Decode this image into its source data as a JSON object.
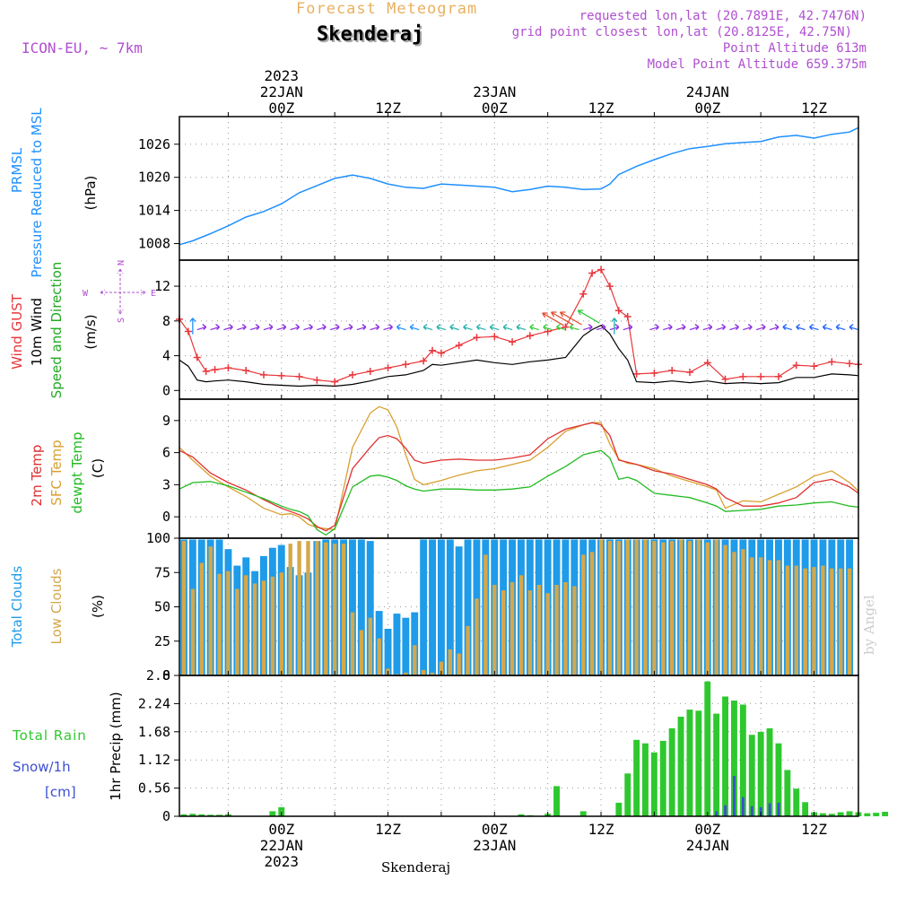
{
  "header": {
    "product": "Forecast Meteogram",
    "location": "Skenderaj",
    "model": "ICON-EU, ~ 7km",
    "requested": "requested lon,lat (20.7891E, 42.7476N)",
    "gridpoint": "grid point closest lon,lat (20.8125E, 42.75N)",
    "point_alt": "Point Altitude 613m",
    "model_alt": "Model Point Altitude 659.375m",
    "footer_location": "Skenderaj",
    "credit": "by Angel"
  },
  "colors": {
    "pressure": "#1e90ff",
    "gust": "#e8373c",
    "wind": "#000000",
    "dir_label": "#22aa22",
    "temp2m": "#e03030",
    "sfc": "#d9a030",
    "dewpt": "#22bb22",
    "total_cloud": "#1e9be9",
    "low_cloud": "#d4a84a",
    "rain": "#2ec82e",
    "snow": "#3b4fd0",
    "purple": "#b04fd0",
    "orange_title": "#e8b060"
  },
  "time_axis": {
    "top_labels": [
      {
        "h": 0,
        "lines": [
          "2023",
          "22JAN",
          "00Z"
        ]
      },
      {
        "h": 12,
        "lines": [
          "12Z"
        ]
      },
      {
        "h": 24,
        "lines": [
          "23JAN",
          "00Z"
        ]
      },
      {
        "h": 36,
        "lines": [
          "12Z"
        ]
      },
      {
        "h": 48,
        "lines": [
          "24JAN",
          "00Z"
        ]
      },
      {
        "h": 60,
        "lines": [
          "12Z"
        ]
      }
    ],
    "bottom_labels": [
      {
        "h": 0,
        "lines": [
          "00Z",
          "22JAN",
          "2023"
        ]
      },
      {
        "h": 12,
        "lines": [
          "12Z"
        ]
      },
      {
        "h": 24,
        "lines": [
          "00Z",
          "23JAN"
        ]
      },
      {
        "h": 36,
        "lines": [
          "12Z"
        ]
      },
      {
        "h": 48,
        "lines": [
          "00Z",
          "24JAN"
        ]
      },
      {
        "h": 60,
        "lines": [
          "12Z"
        ]
      }
    ],
    "hour_range": [
      -11.5,
      65
    ]
  },
  "chart_data": [
    {
      "type": "line",
      "panel": "pressure",
      "labels": [
        "PRMSL",
        "Pressure Reduced to MSL",
        "(hPa)"
      ],
      "ylim": [
        1005,
        1031
      ],
      "yticks": [
        1008,
        1014,
        1020,
        1026
      ],
      "x": [
        -11.5,
        -10,
        -8,
        -6,
        -4,
        -2,
        0,
        2,
        4,
        6,
        8,
        10,
        12,
        14,
        16,
        18,
        20,
        22,
        24,
        26,
        28,
        30,
        32,
        34,
        36,
        37,
        38,
        40,
        42,
        44,
        46,
        48,
        50,
        52,
        54,
        56,
        58,
        60,
        62,
        64,
        65
      ],
      "values": [
        1007.8,
        1008.5,
        1009.8,
        1011.2,
        1012.8,
        1013.8,
        1015.2,
        1017.2,
        1018.5,
        1019.8,
        1020.4,
        1019.8,
        1018.8,
        1018.2,
        1018.0,
        1018.8,
        1018.6,
        1018.4,
        1018.2,
        1017.4,
        1017.8,
        1018.4,
        1018.2,
        1017.8,
        1017.9,
        1018.8,
        1020.5,
        1022.0,
        1023.2,
        1024.3,
        1025.2,
        1025.6,
        1026.1,
        1026.3,
        1026.5,
        1027.3,
        1027.6,
        1027.1,
        1027.8,
        1028.2,
        1029.0
      ]
    },
    {
      "type": "line",
      "panel": "wind",
      "labels": [
        "Wind GUST",
        "10m Wind",
        "Speed and Direction",
        "(m/s)"
      ],
      "compass": [
        "N",
        "S",
        "W",
        "E"
      ],
      "ylim": [
        -1,
        15
      ],
      "yticks": [
        0,
        4,
        8,
        12
      ],
      "x": [
        -11.5,
        -10.5,
        -9.5,
        -8.5,
        -7.5,
        -6,
        -4,
        -2,
        0,
        2,
        4,
        6,
        8,
        10,
        12,
        14,
        16,
        17,
        18,
        20,
        22,
        24,
        26,
        28,
        30,
        32,
        34,
        35,
        36,
        37,
        38,
        39,
        40,
        42,
        44,
        46,
        48,
        50,
        52,
        54,
        56,
        58,
        60,
        62,
        64,
        65
      ],
      "gust": [
        8.2,
        6.8,
        3.8,
        2.2,
        2.4,
        2.6,
        2.3,
        1.8,
        1.7,
        1.6,
        1.2,
        1.0,
        1.8,
        2.2,
        2.6,
        3.0,
        3.4,
        4.6,
        4.3,
        5.2,
        6.1,
        6.2,
        5.6,
        6.3,
        6.8,
        7.3,
        11.1,
        13.5,
        13.9,
        12.0,
        9.2,
        8.5,
        1.9,
        2.0,
        2.3,
        2.1,
        3.2,
        1.3,
        1.6,
        1.6,
        1.6,
        2.9,
        2.8,
        3.3,
        3.1,
        3.0
      ],
      "wind": [
        3.5,
        2.8,
        1.2,
        1.0,
        1.1,
        1.2,
        1.0,
        0.7,
        0.6,
        0.5,
        0.6,
        0.5,
        0.7,
        1.1,
        1.6,
        1.8,
        2.3,
        3.0,
        2.9,
        3.2,
        3.5,
        3.2,
        3.0,
        3.3,
        3.5,
        3.8,
        6.3,
        7.0,
        7.5,
        6.5,
        4.8,
        3.5,
        1.0,
        0.9,
        1.1,
        0.9,
        1.1,
        0.8,
        0.9,
        0.8,
        0.9,
        1.5,
        1.5,
        1.9,
        1.8,
        1.7
      ]
    },
    {
      "type": "line",
      "panel": "temperature",
      "labels": [
        "2m Temp",
        "SFC Temp",
        "dewpt Temp",
        "(C)"
      ],
      "ylim": [
        -2,
        11
      ],
      "yticks": [
        0,
        3,
        6,
        9
      ],
      "x": [
        -11.5,
        -10,
        -8,
        -6,
        -4,
        -2,
        0,
        1,
        2,
        3,
        4,
        5,
        6,
        8,
        10,
        11,
        12,
        13,
        14,
        15,
        16,
        18,
        20,
        22,
        24,
        26,
        28,
        30,
        32,
        34,
        35,
        36,
        37,
        38,
        39,
        40,
        42,
        44,
        46,
        48,
        49,
        50,
        52,
        54,
        56,
        58,
        60,
        62,
        64,
        65
      ],
      "temp2m": [
        6.2,
        5.6,
        4.1,
        3.2,
        2.5,
        1.6,
        0.8,
        0.5,
        0.2,
        -0.2,
        -0.9,
        -1.3,
        -0.8,
        4.5,
        6.5,
        7.4,
        7.6,
        7.3,
        6.4,
        5.3,
        5.0,
        5.3,
        5.4,
        5.3,
        5.3,
        5.5,
        5.8,
        7.3,
        8.2,
        8.6,
        8.8,
        8.6,
        7.6,
        5.3,
        5.1,
        4.9,
        4.3,
        4.0,
        3.5,
        3.0,
        2.6,
        1.8,
        1.0,
        1.0,
        1.3,
        1.8,
        3.2,
        3.5,
        2.8,
        2.2
      ],
      "sfc": [
        6.5,
        5.3,
        3.8,
        2.8,
        1.9,
        0.8,
        0.2,
        0.3,
        0.0,
        -0.7,
        -1.0,
        -1.1,
        -1.2,
        6.5,
        9.7,
        10.3,
        10.0,
        8.4,
        5.8,
        3.5,
        3.0,
        3.4,
        3.9,
        4.3,
        4.5,
        4.9,
        5.3,
        6.5,
        8.0,
        8.6,
        8.8,
        8.8,
        6.8,
        5.4,
        5.0,
        4.9,
        4.5,
        3.8,
        3.3,
        2.8,
        2.5,
        0.8,
        1.5,
        1.4,
        2.1,
        2.8,
        3.8,
        4.3,
        3.2,
        2.4
      ],
      "dewpt": [
        2.6,
        3.2,
        3.3,
        2.9,
        2.3,
        1.7,
        1.0,
        0.7,
        0.5,
        0.1,
        -1.2,
        -1.7,
        -1.1,
        2.8,
        3.8,
        3.9,
        3.7,
        3.4,
        2.9,
        2.6,
        2.4,
        2.6,
        2.6,
        2.5,
        2.5,
        2.6,
        2.8,
        3.8,
        4.7,
        5.8,
        6.0,
        6.2,
        5.5,
        3.5,
        3.7,
        3.4,
        2.2,
        2.0,
        1.8,
        1.3,
        1.0,
        0.5,
        0.6,
        0.7,
        1.0,
        1.1,
        1.3,
        1.4,
        1.0,
        0.9
      ]
    },
    {
      "type": "bar",
      "panel": "clouds",
      "labels": [
        "Total Clouds",
        "Low Clouds",
        "(%)"
      ],
      "ylim": [
        0,
        100
      ],
      "yticks": [
        0,
        25,
        50,
        75,
        100
      ],
      "x_start": -11,
      "x_step": 1,
      "total": [
        99,
        99,
        99,
        99,
        99,
        92,
        80,
        86,
        76,
        87,
        93,
        95,
        79,
        73,
        75,
        98,
        99,
        99,
        99,
        99,
        99,
        98,
        47,
        34,
        45,
        42,
        46,
        99,
        99,
        99,
        99,
        94,
        99,
        99,
        99,
        99,
        99,
        99,
        99,
        99,
        99,
        99,
        99,
        99,
        99,
        99,
        99,
        99,
        99,
        99,
        99,
        99,
        99,
        99,
        99,
        99,
        99,
        99,
        99,
        99,
        99,
        99,
        99,
        99,
        99,
        99,
        99,
        99,
        99,
        99,
        99,
        99,
        99,
        99,
        99,
        99
      ],
      "low": [
        98,
        63,
        82,
        94,
        74,
        76,
        63,
        73,
        67,
        69,
        72,
        75,
        96,
        98,
        98,
        98,
        97,
        96,
        96,
        46,
        33,
        42,
        27,
        5,
        1,
        2,
        22,
        4,
        2,
        10,
        19,
        16,
        36,
        56,
        88,
        66,
        62,
        68,
        73,
        62,
        66,
        60,
        66,
        68,
        65,
        88,
        90,
        99,
        98,
        98,
        99,
        99,
        99,
        98,
        97,
        98,
        99,
        98,
        99,
        97,
        99,
        95,
        90,
        92,
        86,
        86,
        84,
        84,
        80,
        80,
        78,
        79,
        80,
        78,
        78,
        78
      ]
    },
    {
      "type": "bar",
      "panel": "precipitation",
      "labels": [
        "Total Rain",
        "Snow/1h",
        "[cm]",
        "1hr Precip (mm)"
      ],
      "ylim": [
        0,
        2.8
      ],
      "yticks": [
        0,
        0.56,
        1.12,
        1.68,
        2.24,
        2.8
      ],
      "x_start": -11,
      "x_step": 1,
      "rain": [
        0.04,
        0.05,
        0.04,
        0.03,
        0.03,
        0.04,
        0,
        0,
        0,
        0,
        0.1,
        0.18,
        0,
        0,
        0,
        0,
        0,
        0,
        0,
        0,
        0,
        0,
        0,
        0,
        0,
        0,
        0,
        0,
        0,
        0,
        0,
        0,
        0,
        0,
        0,
        0,
        0,
        0,
        0.04,
        0.02,
        0,
        0.05,
        0.6,
        0,
        0,
        0.1,
        0,
        0,
        0,
        0.27,
        0.85,
        1.52,
        1.45,
        1.27,
        1.5,
        1.75,
        1.98,
        2.12,
        2.1,
        2.68,
        2.04,
        2.38,
        2.3,
        2.22,
        1.62,
        1.68,
        1.75,
        1.45,
        0.92,
        0.55,
        0.28,
        0.08,
        0.06,
        0.05,
        0.08,
        0.1,
        0.08,
        0.06,
        0.07,
        0.09
      ],
      "snow": [
        0,
        0,
        0,
        0,
        0,
        0,
        0,
        0,
        0,
        0,
        0,
        0,
        0,
        0,
        0,
        0,
        0,
        0,
        0,
        0,
        0,
        0,
        0,
        0,
        0,
        0,
        0,
        0,
        0,
        0,
        0,
        0,
        0,
        0,
        0,
        0,
        0,
        0,
        0,
        0,
        0,
        0,
        0,
        0,
        0,
        0,
        0,
        0,
        0,
        0,
        0,
        0,
        0,
        0,
        0,
        0,
        0,
        0,
        0,
        0,
        0.1,
        0.22,
        0.8,
        0.38,
        0.2,
        0.18,
        0.26,
        0.27,
        0.02,
        0,
        0,
        0,
        0,
        0,
        0,
        0,
        0,
        0,
        0,
        0
      ]
    }
  ]
}
